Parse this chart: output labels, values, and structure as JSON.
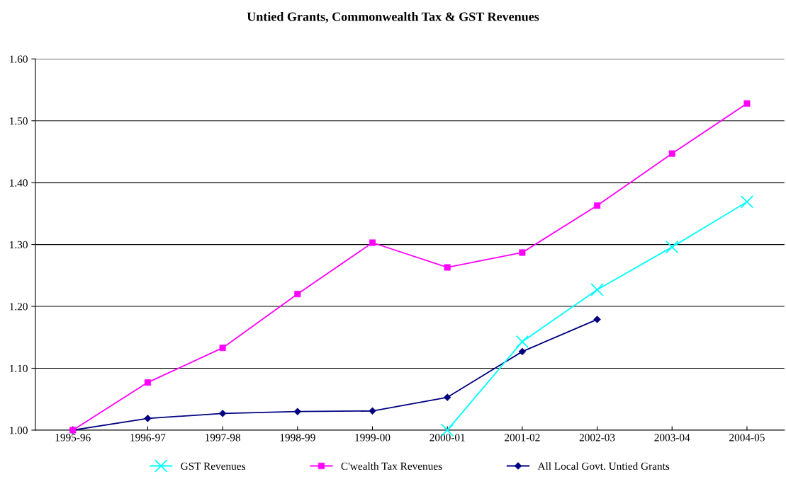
{
  "chart_data": {
    "type": "line",
    "title": "Untied Grants, Commonwealth Tax & GST Revenues",
    "categories": [
      "1995-96",
      "1996-97",
      "1997-98",
      "1998-99",
      "1999-00",
      "2000-01",
      "2001-02",
      "2002-03",
      "2003-04",
      "2004-05"
    ],
    "series": [
      {
        "name": "GST Revenues",
        "color": "#00ffff",
        "marker": "cross",
        "values": [
          null,
          null,
          null,
          null,
          null,
          1.0,
          1.143,
          1.227,
          1.296,
          1.369
        ]
      },
      {
        "name": "C'wealth Tax Revenues",
        "color": "#ff00ff",
        "marker": "square",
        "values": [
          1.0,
          1.077,
          1.133,
          1.22,
          1.303,
          1.263,
          1.287,
          1.363,
          1.447,
          1.528
        ]
      },
      {
        "name": "All Local Govt. Untied Grants",
        "color": "#000080",
        "marker": "diamond",
        "values": [
          1.0,
          1.019,
          1.027,
          1.03,
          1.031,
          1.053,
          1.127,
          1.179,
          null,
          null
        ]
      }
    ],
    "ylim": [
      1.0,
      1.6
    ],
    "yticks": [
      {
        "value": 1.0,
        "label": "1.00"
      },
      {
        "value": 1.1,
        "label": "1.10"
      },
      {
        "value": 1.2,
        "label": "1.20"
      },
      {
        "value": 1.3,
        "label": "1.30"
      },
      {
        "value": 1.4,
        "label": "1.40"
      },
      {
        "value": 1.5,
        "label": "1.50"
      },
      {
        "value": 1.6,
        "label": "1.60"
      }
    ],
    "grid": "y",
    "legend": "bottom",
    "line_style": "solid"
  }
}
